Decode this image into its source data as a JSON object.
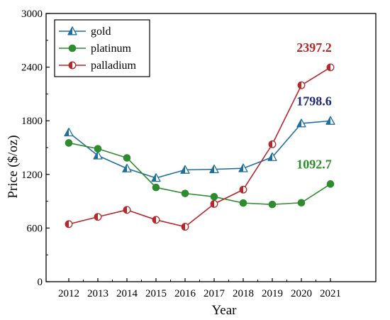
{
  "chart_data": {
    "type": "line",
    "title": "",
    "xlabel": "Year",
    "ylabel": "Price ($/oz)",
    "x": [
      "2012",
      "2013",
      "2014",
      "2015",
      "2016",
      "2017",
      "2018",
      "2019",
      "2020",
      "2021"
    ],
    "ylim": [
      0,
      3000
    ],
    "yticks": [
      "0",
      "600",
      "1200",
      "1800",
      "2400",
      "3000"
    ],
    "grid": false,
    "legend_position": "top-left",
    "series": [
      {
        "name": "gold",
        "color": "#1f6f9e",
        "marker": "triangle-half",
        "values": [
          1669,
          1411,
          1266,
          1160,
          1251,
          1257,
          1268,
          1393,
          1770,
          1798.6
        ],
        "end_label": "1798.6",
        "end_label_color": "#1f2a7a"
      },
      {
        "name": "platinum",
        "color": "#2e8b2e",
        "marker": "circle-filled",
        "values": [
          1552,
          1487,
          1385,
          1054,
          987,
          950,
          880,
          864,
          883,
          1092.7
        ],
        "end_label": "1092.7",
        "end_label_color": "#2e8b2e"
      },
      {
        "name": "palladium",
        "color": "#b5282b",
        "marker": "circle-half",
        "values": [
          644,
          725,
          803,
          692,
          614,
          870,
          1030,
          1537,
          2197,
          2397.2
        ],
        "end_label": "2397.2",
        "end_label_color": "#b5282b"
      }
    ]
  }
}
